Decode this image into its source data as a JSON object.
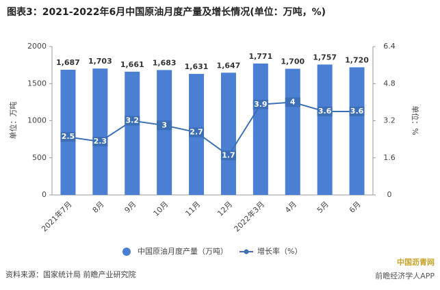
{
  "chart_data": {
    "type": "bar",
    "title": "图表3：2021-2022年6月中国原油月度产量及增长情况(单位：万吨，%)",
    "categories": [
      "2021年7月",
      "8月",
      "9月",
      "10月",
      "11月",
      "12月",
      "2022年3月",
      "4月",
      "5月",
      "6月"
    ],
    "series": [
      {
        "name": "中国原油月度产量（万吨）",
        "color": "#4a7fd4",
        "axis": "y",
        "values": [
          1687,
          1703,
          1661,
          1683,
          1631,
          1647,
          1771,
          1700,
          1757,
          1720
        ],
        "value_labels": [
          "1,687",
          "1,703",
          "1,661",
          "1,683",
          "1,631",
          "1,647",
          "1,771",
          "1,700",
          "1,757",
          "1,720"
        ]
      },
      {
        "name": "增长率（%）",
        "color": "#3d6fb6",
        "axis": "y2",
        "type": "line",
        "values": [
          2.5,
          2.3,
          3.2,
          3,
          2.7,
          1.7,
          3.9,
          4,
          3.6,
          3.6
        ]
      }
    ],
    "ylim": [
      0,
      2000
    ],
    "yticks": [
      0,
      500,
      1000,
      1500,
      2000
    ],
    "y2lim": [
      0,
      6.4
    ],
    "y2ticks": [
      0,
      1.6,
      3.2,
      4.8,
      6.4
    ],
    "ylabel": "单位：万吨",
    "y2label": "单位：%",
    "source": "资料来源：国家统计局 前瞻产业研究院",
    "watermarks": [
      "中国沥青网",
      "前瞻经济学人APP"
    ]
  }
}
